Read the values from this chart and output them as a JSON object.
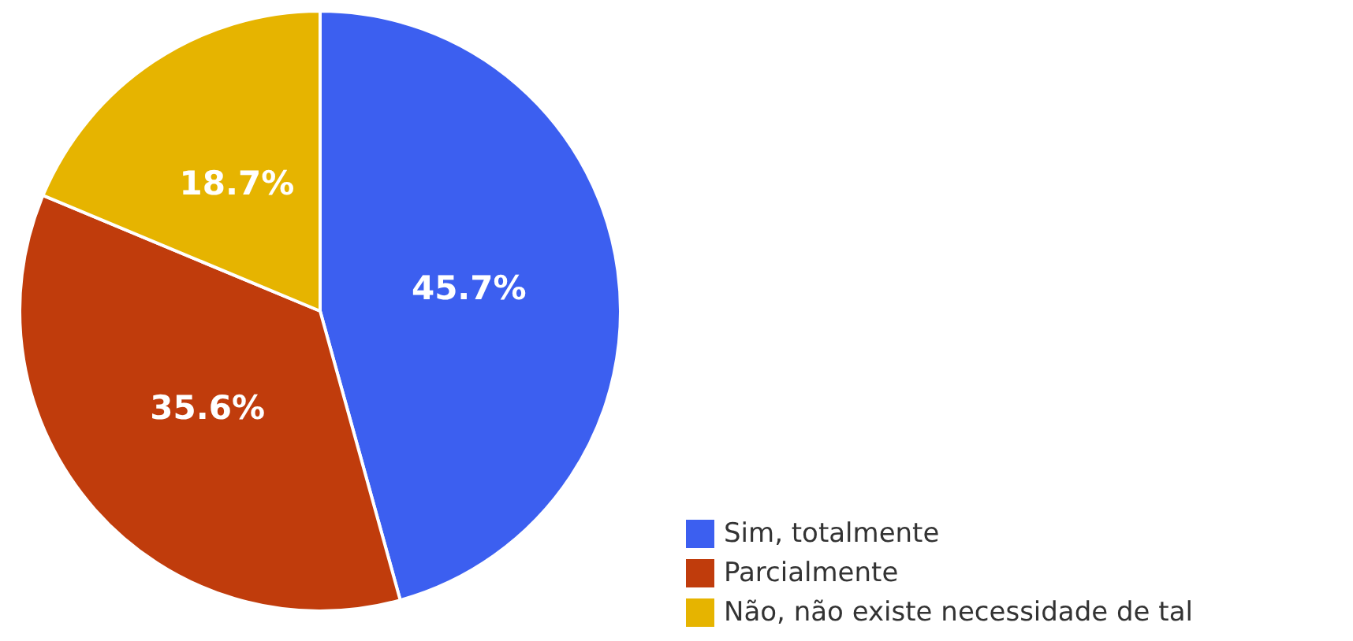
{
  "chart_data": {
    "type": "pie",
    "categories": [
      "Sim, totalmente",
      "Parcialmente",
      "Não, não existe necessidade de tal"
    ],
    "values": [
      45.7,
      35.6,
      18.7
    ],
    "colors": [
      "#3c5ff0",
      "#c03c0c",
      "#e6b400"
    ],
    "value_labels": [
      "45.7%",
      "35.6%",
      "18.7%"
    ],
    "legend": "bottom right"
  }
}
